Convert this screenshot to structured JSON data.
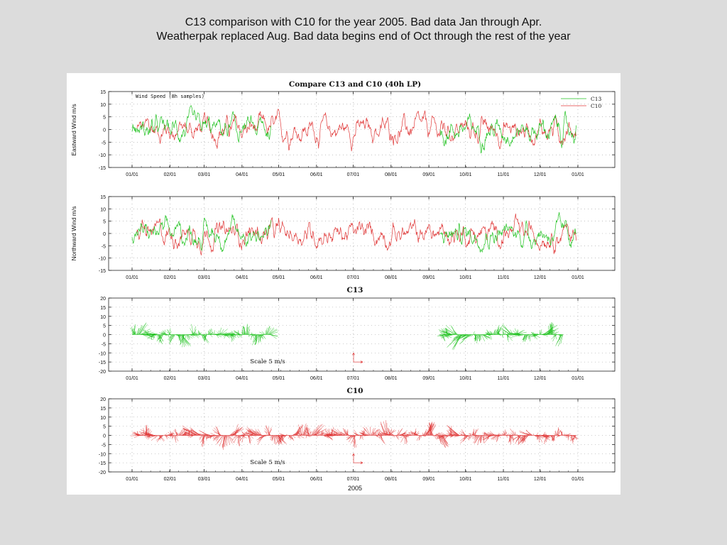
{
  "slide": {
    "title_line1": "C13 comparison with C10 for the year 2005. Bad data Jan through Apr.",
    "title_line2": "Weatherpak replaced Aug. Bad data begins end of Oct through the rest of the year"
  },
  "figure": {
    "background": "#ffffff",
    "page_background": "#dcdcdc"
  },
  "chart_data": [
    {
      "type": "line",
      "title": "Compare C13 and C10 (40h LP)",
      "annotation": "Wind Speed (8h samples)",
      "ylabel": "Eastward Wind m/s",
      "xlabel": "",
      "ylim": [
        -15,
        15
      ],
      "yticks": [
        15,
        10,
        5,
        0,
        -5,
        -10,
        -15
      ],
      "x_tick_labels": [
        "01/01",
        "02/01",
        "03/01",
        "04/01",
        "05/01",
        "06/01",
        "07/01",
        "08/01",
        "09/01",
        "10/01",
        "11/01",
        "12/01",
        "01/01"
      ],
      "grid": true,
      "legend": "top-right",
      "series": [
        {
          "name": "C13",
          "color": "#22c322",
          "segments": [
            [
              "2005-01-01",
              "2005-04-25"
            ],
            [
              "2005-09-10",
              "2005-12-31"
            ]
          ]
        },
        {
          "name": "C10",
          "color": "#e03a3a",
          "segments": [
            [
              "2005-01-05",
              "2005-12-31"
            ]
          ]
        }
      ]
    },
    {
      "type": "line",
      "title": "",
      "ylabel": "Northward Wind m/s",
      "xlabel": "",
      "ylim": [
        -15,
        15
      ],
      "yticks": [
        15,
        10,
        5,
        0,
        -5,
        -10,
        -15
      ],
      "x_tick_labels": [
        "01/01",
        "02/01",
        "03/01",
        "04/01",
        "05/01",
        "06/01",
        "07/01",
        "08/01",
        "09/01",
        "10/01",
        "11/01",
        "12/01",
        "01/01"
      ],
      "grid": true,
      "series": [
        {
          "name": "C13",
          "color": "#22c322",
          "segments": [
            [
              "2005-01-01",
              "2005-04-25"
            ],
            [
              "2005-09-10",
              "2005-12-31"
            ]
          ]
        },
        {
          "name": "C10",
          "color": "#e03a3a",
          "segments": [
            [
              "2005-01-05",
              "2005-12-31"
            ]
          ]
        }
      ]
    },
    {
      "type": "line",
      "subtype": "stick-plot",
      "title": "C13",
      "ylim": [
        -20,
        20
      ],
      "yticks": [
        20,
        15,
        10,
        5,
        0,
        -5,
        -10,
        -15,
        -20
      ],
      "x_tick_labels": [
        "01/01",
        "02/01",
        "03/01",
        "04/01",
        "05/01",
        "06/01",
        "07/01",
        "08/01",
        "09/01",
        "10/01",
        "11/01",
        "12/01",
        "01/01"
      ],
      "grid": true,
      "scale_label": "Scale 5 m/s",
      "scale_value": 5,
      "color": "#22c322",
      "segments": [
        [
          "2005-01-01",
          "2005-04-25"
        ],
        [
          "2005-09-10",
          "2005-12-20"
        ]
      ]
    },
    {
      "type": "line",
      "subtype": "stick-plot",
      "title": "C10",
      "xlabel": "2005",
      "ylim": [
        -20,
        20
      ],
      "yticks": [
        20,
        15,
        10,
        5,
        0,
        -5,
        -10,
        -15,
        -20
      ],
      "x_tick_labels": [
        "01/01",
        "02/01",
        "03/01",
        "04/01",
        "05/01",
        "06/01",
        "07/01",
        "08/01",
        "09/01",
        "10/01",
        "11/01",
        "12/01",
        "01/01"
      ],
      "grid": true,
      "scale_label": "Scale 5 m/s",
      "scale_value": 5,
      "color": "#e03a3a",
      "segments": [
        [
          "2005-01-05",
          "2005-12-31"
        ]
      ]
    }
  ]
}
